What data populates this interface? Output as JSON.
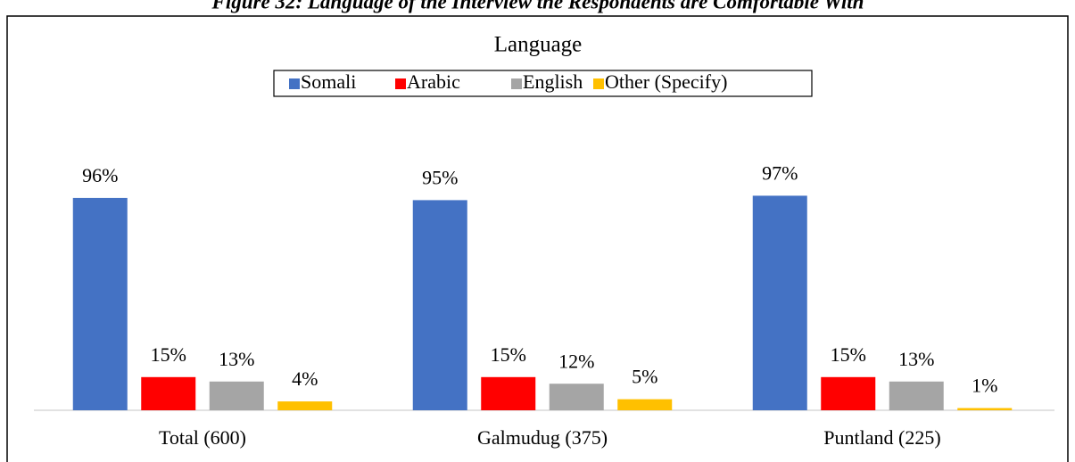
{
  "caption": "Figure 32: Language of the Interview the Respondents are Comfortable With",
  "chart_data": {
    "type": "bar",
    "title": "Language",
    "categories": [
      "Total (600)",
      "Galmudug (375)",
      "Puntland (225)"
    ],
    "series": [
      {
        "name": "Somali",
        "color": "#4472c4",
        "values": [
          96,
          95,
          97
        ],
        "value_labels": [
          "96%",
          "95%",
          "97%"
        ]
      },
      {
        "name": "Arabic",
        "color": "#ff0000",
        "values": [
          15,
          15,
          15
        ],
        "value_labels": [
          "15%",
          "15%",
          "15%"
        ]
      },
      {
        "name": "English",
        "color": "#a5a5a5",
        "values": [
          13,
          12,
          13
        ],
        "value_labels": [
          "13%",
          "12%",
          "13%"
        ]
      },
      {
        "name": "Other (Specify)",
        "color": "#ffc000",
        "values": [
          4,
          5,
          1
        ],
        "value_labels": [
          "4%",
          "5%",
          "1%"
        ]
      }
    ],
    "legend": "top"
  }
}
